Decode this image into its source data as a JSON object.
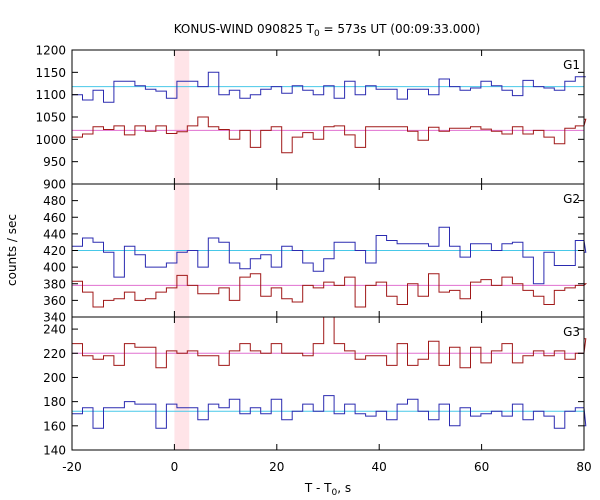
{
  "chart_data": {
    "type": "line",
    "title_main": "KONUS-WIND 090825 T",
    "title_sub": "0",
    "title_rest": " = 573s UT (00:09:33.000)",
    "xlabel_main": "T - T",
    "xlabel_sub": "0",
    "xlabel_rest": ", s",
    "ylabel": "counts / sec",
    "xlim": [
      -20,
      80
    ],
    "x_ticks": [
      "-20",
      "0",
      "20",
      "40",
      "60",
      "80"
    ],
    "x_tick_values": [
      -20,
      0,
      20,
      40,
      60,
      80
    ],
    "bin_width": 2.048,
    "bin_start": -20,
    "highlight_band": [
      0,
      2.9
    ],
    "colors": {
      "upper": "#2b2bb0",
      "lower": "#a01818",
      "upper_bg": "#48c8e8",
      "lower_bg": "#e070d0",
      "band": "#ffe4e8"
    },
    "panels": [
      {
        "name": "G1",
        "ylim": [
          900,
          1200
        ],
        "ticks": [
          900,
          950,
          1000,
          1050,
          1100,
          1150,
          1200
        ],
        "tick_labels": [
          "900",
          "950",
          "1000",
          "1050",
          "1100",
          "1150",
          "1200"
        ],
        "bg_upper": 1118,
        "bg_lower": 1020,
        "series": [
          {
            "name": "",
            "role": "upper",
            "values": [
              1100,
              1088,
              1110,
              1083,
              1130,
              1130,
              1120,
              1112,
              1108,
              1092,
              1130,
              1130,
              1118,
              1150,
              1100,
              1110,
              1092,
              1100,
              1112,
              1118,
              1103,
              1120,
              1110,
              1100,
              1120,
              1092,
              1130,
              1100,
              1120,
              1112,
              1112,
              1090,
              1112,
              1112,
              1100,
              1135,
              1118,
              1110,
              1115,
              1130,
              1120,
              1110,
              1098,
              1132,
              1118,
              1115,
              1110,
              1130,
              1140,
              1140
            ]
          },
          {
            "name": "",
            "role": "lower",
            "values": [
              1005,
              1012,
              1028,
              1022,
              1030,
              1010,
              1030,
              1018,
              1030,
              1013,
              1017,
              1030,
              1050,
              1028,
              1022,
              1000,
              1020,
              982,
              1020,
              1028,
              970,
              1005,
              1015,
              1000,
              1028,
              1030,
              1010,
              982,
              1028,
              1028,
              1028,
              1028,
              1018,
              998,
              1027,
              1018,
              1025,
              1025,
              1028,
              1023,
              1018,
              1012,
              1028,
              1012,
              1020,
              1005,
              990,
              1025,
              1030,
              1045
            ]
          }
        ]
      },
      {
        "name": "G2",
        "ylim": [
          340,
          500
        ],
        "ticks": [
          340,
          360,
          380,
          400,
          420,
          440,
          460,
          480
        ],
        "tick_labels": [
          "340",
          "360",
          "380",
          "400",
          "420",
          "440",
          "460",
          "480"
        ],
        "bg_upper": 420,
        "bg_lower": 378,
        "series": [
          {
            "name": "",
            "role": "upper",
            "values": [
              425,
              435,
              430,
              418,
              388,
              425,
              415,
              400,
              400,
              405,
              418,
              420,
              400,
              435,
              430,
              405,
              398,
              410,
              415,
              400,
              425,
              420,
              405,
              395,
              410,
              430,
              430,
              420,
              405,
              438,
              432,
              428,
              428,
              428,
              425,
              448,
              425,
              412,
              428,
              428,
              420,
              428,
              430,
              412,
              380,
              418,
              402,
              402,
              432,
              418
            ]
          },
          {
            "name": "",
            "role": "lower",
            "values": [
              383,
              370,
              352,
              360,
              362,
              370,
              360,
              362,
              370,
              375,
              390,
              378,
              368,
              368,
              375,
              360,
              388,
              392,
              365,
              375,
              362,
              358,
              378,
              375,
              382,
              378,
              388,
              352,
              378,
              382,
              365,
              355,
              380,
              365,
              392,
              370,
              372,
              362,
              382,
              385,
              378,
              388,
              380,
              372,
              365,
              355,
              372,
              375,
              378,
              380
            ]
          }
        ]
      },
      {
        "name": "G3",
        "ylim": [
          140,
          250
        ],
        "ticks": [
          140,
          160,
          180,
          200,
          220,
          240
        ],
        "tick_labels": [
          "140",
          "160",
          "180",
          "200",
          "220",
          "240"
        ],
        "bg_upper": 172,
        "bg_lower": 220,
        "series": [
          {
            "name": "",
            "role": "upper",
            "values": [
              170,
              175,
              158,
              175,
              175,
              180,
              178,
              178,
              158,
              178,
              175,
              175,
              165,
              178,
              175,
              182,
              170,
              175,
              170,
              182,
              165,
              172,
              178,
              172,
              185,
              170,
              178,
              170,
              168,
              172,
              165,
              178,
              182,
              172,
              165,
              178,
              160,
              175,
              168,
              170,
              172,
              168,
              178,
              165,
              172,
              168,
              158,
              172,
              175,
              160
            ]
          },
          {
            "name": "",
            "role": "lower",
            "values": [
              228,
              218,
              215,
              218,
              210,
              228,
              225,
              225,
              208,
              222,
              220,
              222,
              218,
              218,
              210,
              222,
              228,
              222,
              220,
              228,
              220,
              220,
              218,
              228,
              250,
              228,
              222,
              215,
              218,
              218,
              210,
              228,
              210,
              215,
              230,
              210,
              225,
              208,
              225,
              212,
              222,
              228,
              212,
              218,
              222,
              218,
              222,
              215,
              220,
              232
            ]
          }
        ]
      }
    ]
  }
}
